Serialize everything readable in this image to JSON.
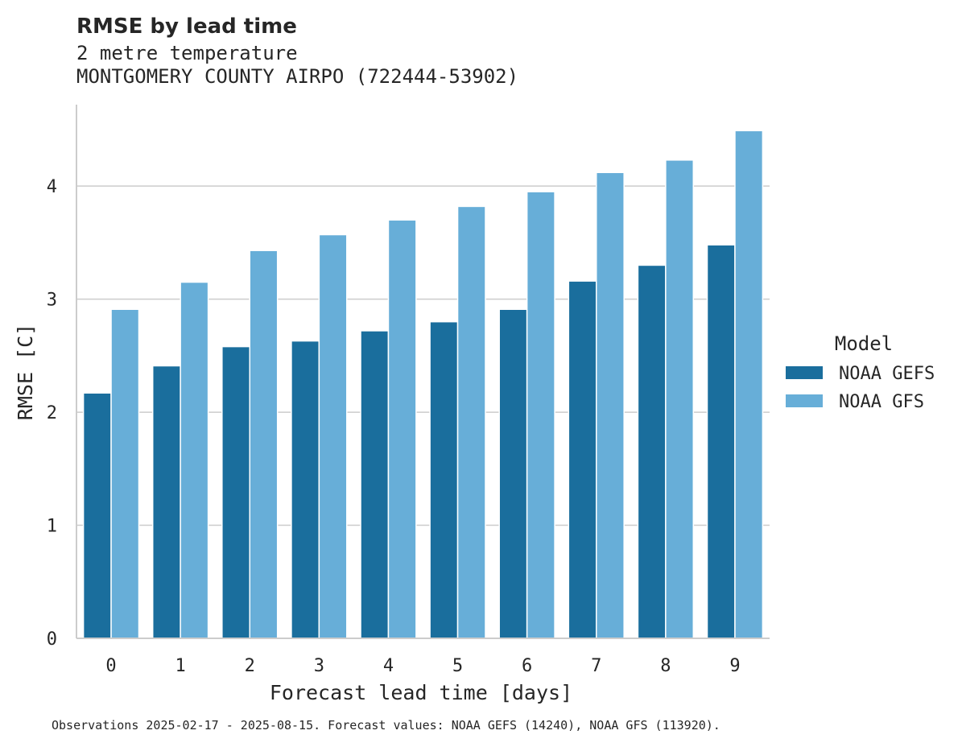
{
  "chart_data": {
    "type": "bar",
    "title": "RMSE by lead time",
    "subtitle": [
      "2 metre temperature",
      "MONTGOMERY COUNTY AIRPO (722444-53902)"
    ],
    "xlabel": "Forecast lead time [days]",
    "ylabel": "RMSE [C]",
    "categories": [
      "0",
      "1",
      "2",
      "3",
      "4",
      "5",
      "6",
      "7",
      "8",
      "9"
    ],
    "yticks": [
      "0",
      "1",
      "2",
      "3",
      "4"
    ],
    "ylim": [
      0,
      4.72
    ],
    "grid": "horizontal",
    "legend": {
      "title": "Model",
      "placement": "right"
    },
    "series": [
      {
        "name": "NOAA GEFS",
        "color": "#1a6e9d",
        "values": [
          2.17,
          2.41,
          2.58,
          2.63,
          2.72,
          2.8,
          2.91,
          3.16,
          3.3,
          3.48
        ]
      },
      {
        "name": "NOAA GFS",
        "color": "#67aed8",
        "values": [
          2.91,
          3.15,
          3.43,
          3.57,
          3.7,
          3.82,
          3.95,
          4.12,
          4.23,
          4.49
        ]
      }
    ],
    "footnote": "Observations 2025-02-17 - 2025-08-15. Forecast values: NOAA GEFS (14240), NOAA GFS (113920)."
  }
}
